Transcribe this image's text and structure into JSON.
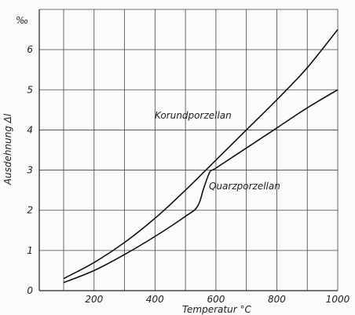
{
  "chart_data": {
    "type": "line",
    "xlabel": "Temperatur °C",
    "ylabel": "Ausdehnung Δl",
    "y_unit": "‰",
    "xlim": [
      20,
      1000
    ],
    "ylim": [
      0,
      7
    ],
    "x_ticks": [
      200,
      400,
      600,
      800,
      1000
    ],
    "y_ticks": [
      0,
      1,
      2,
      3,
      4,
      5,
      6
    ],
    "grid": true,
    "series": [
      {
        "name": "Korundporzellan",
        "x": [
          100,
          200,
          300,
          400,
          500,
          600,
          700,
          800,
          900,
          1000
        ],
        "y": [
          0.3,
          0.7,
          1.2,
          1.8,
          2.5,
          3.25,
          4.0,
          4.75,
          5.55,
          6.5
        ]
      },
      {
        "name": "Quarzporzellan",
        "x": [
          100,
          200,
          300,
          400,
          500,
          540,
          560,
          580,
          600,
          700,
          800,
          900,
          1000
        ],
        "y": [
          0.2,
          0.5,
          0.9,
          1.35,
          1.85,
          2.1,
          2.55,
          2.95,
          3.05,
          3.55,
          4.05,
          4.55,
          5.0
        ]
      }
    ]
  }
}
